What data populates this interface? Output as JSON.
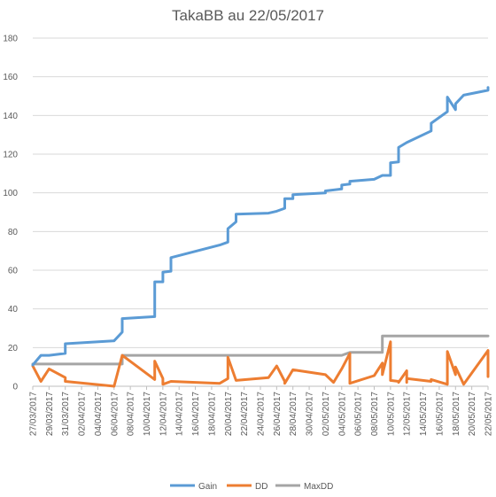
{
  "chart_data": {
    "type": "line",
    "title": "TakaBB au 22/05/2017",
    "xlabel": "",
    "ylabel": "",
    "ylim": [
      0,
      180
    ],
    "yticks": [
      0,
      20,
      40,
      60,
      80,
      100,
      120,
      140,
      160,
      180
    ],
    "xlim": [
      "2017-03-27",
      "2017-05-22"
    ],
    "xtick_labels": [
      "27/03/2017",
      "29/03/2017",
      "31/03/2017",
      "02/04/2017",
      "04/04/2017",
      "06/04/2017",
      "08/04/2017",
      "10/04/2017",
      "12/04/2017",
      "14/04/2017",
      "16/04/2017",
      "18/04/2017",
      "20/04/2017",
      "22/04/2017",
      "24/04/2017",
      "26/04/2017",
      "28/04/2017",
      "30/04/2017",
      "02/05/2017",
      "04/05/2017",
      "06/05/2017",
      "08/05/2017",
      "10/05/2017",
      "12/05/2017",
      "14/05/2017",
      "16/05/2017",
      "18/05/2017",
      "20/05/2017",
      "22/05/2017"
    ],
    "grid": true,
    "legend_position": "bottom",
    "colors": {
      "Gain": "#5b9bd5",
      "DD": "#ed7d31",
      "MaxDD": "#a5a5a5"
    },
    "series": [
      {
        "name": "Gain",
        "x": [
          "2017-03-27",
          "2017-03-28",
          "2017-03-29",
          "2017-03-31",
          "2017-03-31",
          "2017-04-06",
          "2017-04-07",
          "2017-04-07",
          "2017-04-11",
          "2017-04-11",
          "2017-04-12",
          "2017-04-12",
          "2017-04-13",
          "2017-04-13",
          "2017-04-19",
          "2017-04-20",
          "2017-04-20",
          "2017-04-21",
          "2017-04-21",
          "2017-04-25",
          "2017-04-26",
          "2017-04-27",
          "2017-04-27",
          "2017-04-28",
          "2017-04-28",
          "2017-05-02",
          "2017-05-02",
          "2017-05-04",
          "2017-05-04",
          "2017-05-05",
          "2017-05-05",
          "2017-05-08",
          "2017-05-09",
          "2017-05-10",
          "2017-05-10",
          "2017-05-11",
          "2017-05-11",
          "2017-05-12",
          "2017-05-15",
          "2017-05-15",
          "2017-05-17",
          "2017-05-17",
          "2017-05-18",
          "2017-05-18",
          "2017-05-19",
          "2017-05-22",
          "2017-05-22"
        ],
        "values": [
          11,
          16,
          16,
          17,
          22,
          23.5,
          28,
          35,
          36,
          54,
          54,
          59,
          59.5,
          66.5,
          73,
          74.5,
          81.5,
          85,
          89,
          89.5,
          90.5,
          92,
          97,
          97,
          99,
          100,
          101,
          102,
          104,
          104.5,
          106,
          107,
          109,
          109,
          115.5,
          116,
          123.5,
          126,
          132,
          136,
          142,
          149.5,
          143,
          146,
          150.5,
          153,
          154.5
        ]
      },
      {
        "name": "DD",
        "x": [
          "2017-03-27",
          "2017-03-28",
          "2017-03-29",
          "2017-03-31",
          "2017-03-31",
          "2017-04-06",
          "2017-04-07",
          "2017-04-11",
          "2017-04-11",
          "2017-04-12",
          "2017-04-12",
          "2017-04-13",
          "2017-04-13",
          "2017-04-19",
          "2017-04-20",
          "2017-04-20",
          "2017-04-21",
          "2017-04-25",
          "2017-04-26",
          "2017-04-27",
          "2017-04-27",
          "2017-04-28",
          "2017-05-02",
          "2017-05-03",
          "2017-05-04",
          "2017-05-05",
          "2017-05-05",
          "2017-05-08",
          "2017-05-09",
          "2017-05-09",
          "2017-05-10",
          "2017-05-10",
          "2017-05-11",
          "2017-05-11",
          "2017-05-12",
          "2017-05-12",
          "2017-05-12",
          "2017-05-15",
          "2017-05-15",
          "2017-05-17",
          "2017-05-17",
          "2017-05-18",
          "2017-05-18",
          "2017-05-19",
          "2017-05-22",
          "2017-05-22"
        ],
        "values": [
          10.5,
          2.5,
          9,
          4.5,
          2.5,
          0,
          16,
          3.5,
          13,
          4,
          1,
          2.5,
          2.5,
          1.5,
          4,
          15,
          3,
          4.5,
          10.5,
          2.5,
          1.5,
          8.5,
          6,
          2,
          9,
          17,
          1.5,
          5.5,
          12,
          6,
          23,
          3,
          2.5,
          2,
          8,
          2,
          4,
          2.5,
          3.5,
          1,
          18,
          6,
          10,
          1,
          18.5,
          5
        ]
      },
      {
        "name": "MaxDD",
        "x": [
          "2017-03-27",
          "2017-04-07",
          "2017-04-07",
          "2017-05-04",
          "2017-05-05",
          "2017-05-09",
          "2017-05-09",
          "2017-05-22"
        ],
        "values": [
          11.5,
          11.5,
          16,
          16,
          17.5,
          17.5,
          26,
          26
        ]
      }
    ]
  }
}
